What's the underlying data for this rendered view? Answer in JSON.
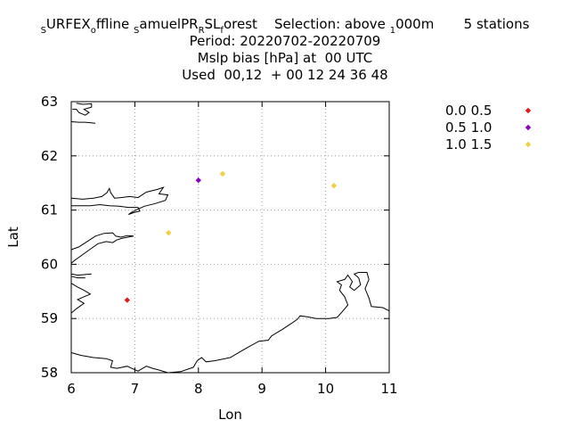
{
  "title": {
    "line1": {
      "segments": [
        {
          "text": "S",
          "sub": true
        },
        {
          "text": "URFEX",
          "sub": false
        },
        {
          "text": "o",
          "sub": true
        },
        {
          "text": "ffline ",
          "sub": false
        },
        {
          "text": "S",
          "sub": true
        },
        {
          "text": "amuelPR",
          "sub": false
        },
        {
          "text": "R",
          "sub": true
        },
        {
          "text": "SL",
          "sub": false
        },
        {
          "text": "f",
          "sub": true
        },
        {
          "text": "orest    Selection: above ",
          "sub": false
        },
        {
          "text": "1",
          "sub": true
        },
        {
          "text": "000m       5 stations",
          "sub": false
        }
      ]
    },
    "line2": "Period: 20220702-20220709",
    "line3": "Mslp bias [hPa] at  00 UTC",
    "line4": "Used  00,12  + 00 12 24 36 48"
  },
  "chart_data": {
    "type": "scatter",
    "xlabel": "Lon",
    "ylabel": "Lat",
    "xlim": [
      6,
      11
    ],
    "ylim": [
      58,
      63
    ],
    "xticks": [
      "6",
      "7",
      "8",
      "9",
      "10",
      "11"
    ],
    "yticks": [
      "58",
      "59",
      "60",
      "61",
      "62",
      "63"
    ],
    "grid": true,
    "legend_position": "right",
    "series": [
      {
        "name": "0.0 0.5",
        "color": "#e31a1c",
        "points": [
          [
            6.88,
            59.34
          ]
        ]
      },
      {
        "name": "0.5 1.0",
        "color": "#8a00c0",
        "points": [
          [
            8.0,
            61.55
          ]
        ]
      },
      {
        "name": "1.0 1.5",
        "color": "#f0d040",
        "points": [
          [
            8.38,
            61.67
          ],
          [
            7.53,
            60.58
          ],
          [
            10.13,
            61.45
          ]
        ]
      }
    ],
    "coastline": [
      [
        [
          6.08,
          62.97
        ],
        [
          6.18,
          62.95
        ],
        [
          6.32,
          62.96
        ],
        [
          6.32,
          62.9
        ],
        [
          6.2,
          62.86
        ],
        [
          6.28,
          62.8
        ],
        [
          6.22,
          62.75
        ],
        [
          6.12,
          62.8
        ],
        [
          6.08,
          62.86
        ],
        [
          6.02,
          62.86
        ]
      ],
      [
        [
          6.0,
          62.63
        ],
        [
          6.12,
          62.62
        ],
        [
          6.22,
          62.62
        ],
        [
          6.38,
          62.6
        ]
      ],
      [
        [
          6.0,
          61.22
        ],
        [
          6.18,
          61.2
        ],
        [
          6.35,
          61.22
        ],
        [
          6.48,
          61.25
        ],
        [
          6.56,
          61.32
        ],
        [
          6.6,
          61.4
        ],
        [
          6.62,
          61.32
        ],
        [
          6.68,
          61.22
        ],
        [
          6.78,
          61.23
        ],
        [
          6.92,
          61.25
        ],
        [
          7.05,
          61.23
        ],
        [
          7.18,
          61.33
        ],
        [
          7.35,
          61.38
        ],
        [
          7.45,
          61.42
        ],
        [
          7.38,
          61.3
        ],
        [
          7.52,
          61.28
        ],
        [
          7.48,
          61.18
        ],
        [
          7.32,
          61.12
        ],
        [
          7.15,
          61.07
        ],
        [
          7.05,
          61.02
        ],
        [
          6.95,
          60.96
        ],
        [
          6.9,
          60.92
        ],
        [
          7.0,
          60.96
        ],
        [
          7.08,
          60.98
        ],
        [
          7.05,
          61.05
        ],
        [
          6.9,
          61.05
        ],
        [
          6.75,
          61.07
        ],
        [
          6.6,
          61.08
        ],
        [
          6.45,
          61.1
        ],
        [
          6.3,
          61.08
        ],
        [
          6.15,
          61.08
        ],
        [
          6.0,
          61.08
        ]
      ],
      [
        [
          6.0,
          60.27
        ],
        [
          6.12,
          60.32
        ],
        [
          6.25,
          60.42
        ],
        [
          6.38,
          60.52
        ],
        [
          6.52,
          60.57
        ],
        [
          6.65,
          60.58
        ],
        [
          6.7,
          60.52
        ],
        [
          6.78,
          60.5
        ],
        [
          6.88,
          60.53
        ],
        [
          6.98,
          60.52
        ],
        [
          6.8,
          60.48
        ],
        [
          6.72,
          60.45
        ],
        [
          6.65,
          60.4
        ],
        [
          6.55,
          60.42
        ],
        [
          6.42,
          60.38
        ],
        [
          6.3,
          60.28
        ],
        [
          6.18,
          60.18
        ],
        [
          6.05,
          60.07
        ],
        [
          6.0,
          60.02
        ]
      ],
      [
        [
          6.0,
          59.82
        ],
        [
          6.1,
          59.8
        ],
        [
          6.32,
          59.82
        ]
      ],
      [
        [
          6.0,
          59.78
        ],
        [
          6.1,
          59.75
        ],
        [
          6.22,
          59.75
        ]
      ],
      [
        [
          6.0,
          59.65
        ],
        [
          6.1,
          59.58
        ],
        [
          6.2,
          59.52
        ],
        [
          6.3,
          59.45
        ],
        [
          6.1,
          59.35
        ],
        [
          6.2,
          59.28
        ],
        [
          6.08,
          59.18
        ],
        [
          6.0,
          59.1
        ]
      ],
      [
        [
          6.0,
          58.37
        ],
        [
          6.15,
          58.32
        ],
        [
          6.35,
          58.28
        ],
        [
          6.55,
          58.26
        ],
        [
          6.65,
          58.22
        ],
        [
          6.62,
          58.1
        ],
        [
          6.72,
          58.08
        ],
        [
          6.88,
          58.12
        ],
        [
          6.95,
          58.08
        ],
        [
          7.05,
          58.03
        ],
        [
          7.18,
          58.12
        ],
        [
          7.28,
          58.08
        ],
        [
          7.38,
          58.05
        ],
        [
          7.52,
          58.0
        ],
        [
          7.72,
          58.02
        ],
        [
          7.92,
          58.1
        ],
        [
          7.98,
          58.22
        ],
        [
          8.05,
          58.28
        ],
        [
          8.12,
          58.2
        ],
        [
          8.25,
          58.22
        ],
        [
          8.5,
          58.28
        ],
        [
          8.75,
          58.45
        ],
        [
          8.95,
          58.58
        ],
        [
          9.1,
          58.6
        ],
        [
          9.15,
          58.68
        ],
        [
          9.32,
          58.8
        ],
        [
          9.45,
          58.9
        ],
        [
          9.55,
          58.98
        ],
        [
          9.6,
          59.05
        ],
        [
          9.72,
          59.03
        ],
        [
          9.85,
          59.0
        ],
        [
          10.05,
          59.0
        ],
        [
          10.18,
          59.02
        ],
        [
          10.28,
          59.15
        ],
        [
          10.35,
          59.25
        ],
        [
          10.3,
          59.4
        ],
        [
          10.22,
          59.52
        ],
        [
          10.25,
          59.62
        ],
        [
          10.18,
          59.68
        ],
        [
          10.3,
          59.72
        ],
        [
          10.35,
          59.8
        ],
        [
          10.42,
          59.68
        ],
        [
          10.38,
          59.58
        ],
        [
          10.45,
          59.52
        ],
        [
          10.55,
          59.62
        ],
        [
          10.52,
          59.75
        ],
        [
          10.45,
          59.82
        ],
        [
          10.52,
          59.85
        ],
        [
          10.65,
          59.85
        ],
        [
          10.68,
          59.72
        ],
        [
          10.62,
          59.55
        ],
        [
          10.68,
          59.38
        ],
        [
          10.72,
          59.22
        ],
        [
          10.9,
          59.2
        ],
        [
          11.0,
          59.14
        ]
      ]
    ]
  }
}
